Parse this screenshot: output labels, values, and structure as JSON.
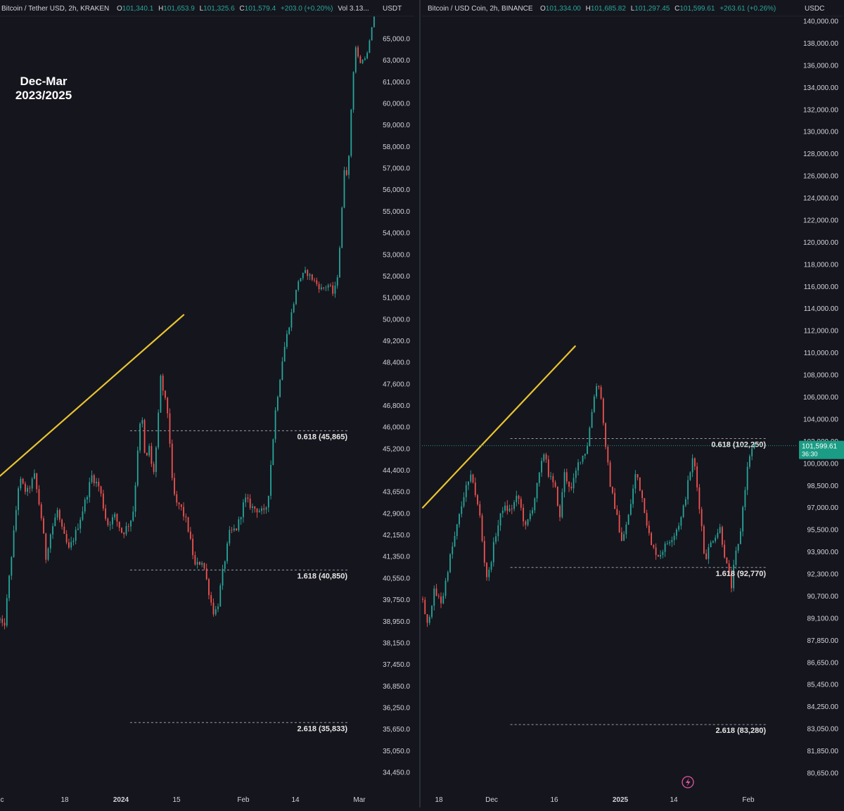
{
  "colors": {
    "background": "#15151d",
    "up": "#26a69a",
    "down": "#ef5350",
    "trendline": "#e8c431",
    "fib": "#b2b5be",
    "price_badge": "#1b9c85",
    "text": "#d1d4dc",
    "divider": "#2a2e39"
  },
  "annotation": {
    "line1": "Dec-Mar",
    "line2": "2023/2025"
  },
  "footer_icon": "lightning-icon",
  "chart_data": [
    {
      "type": "candlestick",
      "header": {
        "symbol": "Bitcoin / Tether USD, 2h, KRAKEN",
        "open_label": "O",
        "open": "101,340.1",
        "high_label": "H",
        "high": "101,653.9",
        "low_label": "L",
        "low": "101,325.6",
        "close_label": "C",
        "close": "101,579.4",
        "change": "+203.0 (+0.20%)",
        "volume": "Vol 3.13..."
      },
      "currency": "USDT",
      "y_ticks": [
        "65,000.0",
        "63,000.0",
        "61,000.0",
        "60,000.0",
        "59,000.0",
        "58,000.0",
        "57,000.0",
        "56,000.0",
        "55,000.0",
        "54,000.0",
        "53,000.0",
        "52,000.0",
        "51,000.0",
        "50,000.0",
        "49,200.0",
        "48,400.0",
        "47,600.0",
        "46,800.0",
        "46,000.0",
        "45,200.0",
        "44,400.0",
        "43,650.0",
        "42,900.0",
        "42,150.0",
        "41,350.0",
        "40,550.0",
        "39,750.0",
        "38,950.0",
        "38,150.0",
        "37,450.0",
        "36,850.0",
        "36,250.0",
        "35,650.0",
        "35,050.0",
        "34,450.0"
      ],
      "x_ticks": [
        "c",
        "18",
        "2024",
        "15",
        "Feb",
        "14",
        "Mar"
      ],
      "x_bold": [
        "2024"
      ],
      "price_path": [
        [
          0,
          39000
        ],
        [
          1,
          38600
        ],
        [
          3,
          41400
        ],
        [
          5,
          44100
        ],
        [
          7,
          43600
        ],
        [
          9,
          44200
        ],
        [
          11,
          42600
        ],
        [
          12,
          41300
        ],
        [
          13,
          42100
        ],
        [
          15,
          43000
        ],
        [
          16,
          42400
        ],
        [
          18,
          41600
        ],
        [
          20,
          42300
        ],
        [
          22,
          43200
        ],
        [
          24,
          44200
        ],
        [
          26,
          43800
        ],
        [
          28,
          42500
        ],
        [
          30,
          42800
        ],
        [
          32,
          42200
        ],
        [
          34,
          42600
        ],
        [
          35,
          43100
        ],
        [
          36,
          45200
        ],
        [
          37,
          46600
        ],
        [
          38,
          44600
        ],
        [
          39,
          45300
        ],
        [
          40,
          44100
        ],
        [
          41,
          45500
        ],
        [
          42,
          47800
        ],
        [
          44,
          46400
        ],
        [
          45,
          44000
        ],
        [
          46,
          43200
        ],
        [
          47,
          43200
        ],
        [
          49,
          42500
        ],
        [
          51,
          41000
        ],
        [
          53,
          41200
        ],
        [
          55,
          39750
        ],
        [
          56,
          39200
        ],
        [
          57,
          39600
        ],
        [
          58,
          40600
        ],
        [
          60,
          42200
        ],
        [
          62,
          42400
        ],
        [
          64,
          43400
        ],
        [
          66,
          43100
        ],
        [
          68,
          43000
        ],
        [
          69,
          42900
        ],
        [
          70,
          43300
        ],
        [
          72,
          46600
        ],
        [
          74,
          48700
        ],
        [
          76,
          50100
        ],
        [
          78,
          51800
        ],
        [
          80,
          52200
        ],
        [
          82,
          51800
        ],
        [
          84,
          51400
        ],
        [
          86,
          51600
        ],
        [
          87,
          51200
        ],
        [
          88,
          51600
        ],
        [
          89,
          53800
        ],
        [
          90,
          57000
        ],
        [
          91,
          56700
        ],
        [
          92,
          60500
        ],
        [
          93,
          64200
        ],
        [
          94,
          62700
        ],
        [
          95,
          63100
        ],
        [
          96,
          63600
        ],
        [
          98,
          67500
        ]
      ],
      "trendline": {
        "from": [
          0,
          44200
        ],
        "to": [
          48,
          50200
        ]
      },
      "fib_levels": [
        {
          "label": "0.618 (45,865)",
          "value": 45865,
          "x_from": 34
        },
        {
          "label": "1.618 (40,850)",
          "value": 40850,
          "x_from": 34
        },
        {
          "label": "2.618 (35,833)",
          "value": 35833,
          "x_from": 34
        }
      ]
    },
    {
      "type": "candlestick",
      "header": {
        "symbol": "Bitcoin / USD Coin, 2h, BINANCE",
        "open_label": "O",
        "open": "101,334.00",
        "high_label": "H",
        "high": "101,685.82",
        "low_label": "L",
        "low": "101,297.45",
        "close_label": "C",
        "close": "101,599.61",
        "change": "+263.61 (+0.26%)"
      },
      "currency": "USDC",
      "current_price": "101,599.61",
      "countdown": "36:30",
      "y_ticks": [
        "140,000.00",
        "138,000.00",
        "136,000.00",
        "134,000.00",
        "132,000.00",
        "130,000.00",
        "128,000.00",
        "126,000.00",
        "124,000.00",
        "122,000.00",
        "120,000.00",
        "118,000.00",
        "116,000.00",
        "114,000.00",
        "112,000.00",
        "110,000.00",
        "108,000.00",
        "106,000.00",
        "104,000.00",
        "102,000.00",
        "100,000.00",
        "98,500.00",
        "97,000.00",
        "95,500.00",
        "93,900.00",
        "92,300.00",
        "90,700.00",
        "89,100.00",
        "87,850.00",
        "86,650.00",
        "85,450.00",
        "84,250.00",
        "83,050.00",
        "81,850.00",
        "80,650.00"
      ],
      "x_ticks": [
        "18",
        "Dec",
        "16",
        "2025",
        "14",
        "Feb"
      ],
      "x_bold": [
        "2025"
      ],
      "price_path": [
        [
          0,
          90500
        ],
        [
          1,
          88400
        ],
        [
          3,
          91000
        ],
        [
          5,
          90200
        ],
        [
          7,
          93300
        ],
        [
          9,
          95700
        ],
        [
          11,
          98100
        ],
        [
          13,
          99200
        ],
        [
          14,
          97600
        ],
        [
          15,
          96400
        ],
        [
          16,
          93600
        ],
        [
          17,
          91800
        ],
        [
          19,
          95000
        ],
        [
          21,
          97000
        ],
        [
          23,
          96800
        ],
        [
          25,
          97800
        ],
        [
          27,
          95600
        ],
        [
          29,
          97200
        ],
        [
          31,
          99700
        ],
        [
          32,
          101200
        ],
        [
          33,
          99300
        ],
        [
          34,
          98700
        ],
        [
          35,
          98100
        ],
        [
          36,
          96200
        ],
        [
          37,
          99400
        ],
        [
          39,
          98200
        ],
        [
          41,
          100200
        ],
        [
          43,
          101200
        ],
        [
          45,
          106200
        ],
        [
          46,
          107500
        ],
        [
          47,
          105400
        ],
        [
          48,
          101300
        ],
        [
          49,
          98900
        ],
        [
          50,
          97500
        ],
        [
          51,
          96600
        ],
        [
          52,
          94400
        ],
        [
          54,
          96400
        ],
        [
          56,
          99500
        ],
        [
          58,
          97200
        ],
        [
          59,
          95700
        ],
        [
          60,
          94300
        ],
        [
          62,
          93600
        ],
        [
          64,
          94500
        ],
        [
          66,
          95200
        ],
        [
          68,
          96400
        ],
        [
          70,
          99200
        ],
        [
          71,
          100600
        ],
        [
          72,
          98400
        ],
        [
          73,
          96300
        ],
        [
          74,
          93300
        ],
        [
          75,
          94100
        ],
        [
          76,
          94800
        ],
        [
          78,
          95600
        ],
        [
          79,
          94000
        ],
        [
          80,
          92600
        ],
        [
          81,
          91400
        ],
        [
          82,
          93600
        ],
        [
          83,
          94500
        ],
        [
          84,
          97000
        ],
        [
          85,
          99300
        ],
        [
          86,
          101100
        ],
        [
          87,
          101600
        ]
      ],
      "trendline": {
        "from": [
          0,
          97000
        ],
        "to": [
          40,
          110600
        ]
      },
      "fib_levels": [
        {
          "label": "0.618 (102,250)",
          "value": 102250,
          "x_from": 23
        },
        {
          "label": "1.618 (92,770)",
          "value": 92770,
          "x_from": 23
        },
        {
          "label": "2.618 (83,280)",
          "value": 83280,
          "x_from": 23
        }
      ]
    }
  ]
}
